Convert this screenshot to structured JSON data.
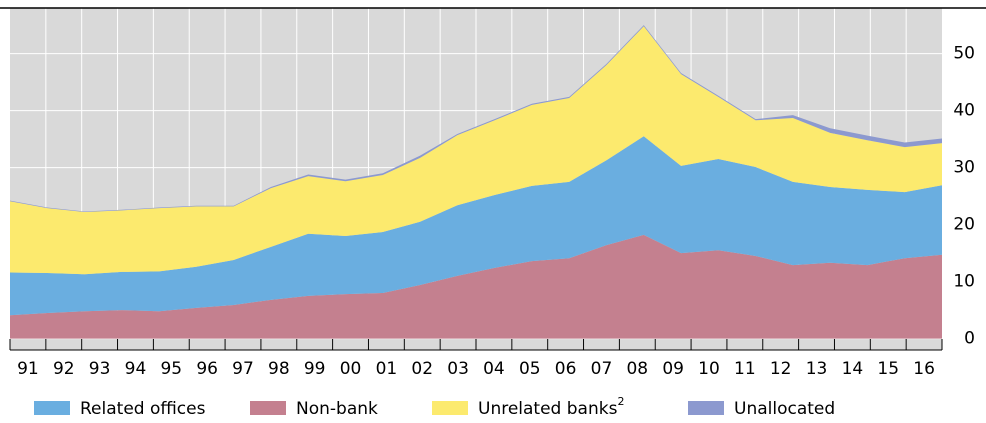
{
  "chart_data": {
    "type": "area",
    "stacked": true,
    "categories": [
      "91",
      "92",
      "93",
      "94",
      "95",
      "96",
      "97",
      "98",
      "99",
      "00",
      "01",
      "02",
      "03",
      "04",
      "05",
      "06",
      "07",
      "08",
      "09",
      "10",
      "11",
      "12",
      "13",
      "14",
      "15",
      "16"
    ],
    "series": [
      {
        "name": "Related offices",
        "color": "#6aaee0",
        "values": [
          7.5,
          7.0,
          6.5,
          6.7,
          7.0,
          7.2,
          7.9,
          9.3,
          10.9,
          10.2,
          10.7,
          11.1,
          12.4,
          12.8,
          13.2,
          13.4,
          14.9,
          17.3,
          15.3,
          16.0,
          15.6,
          14.6,
          13.3,
          13.2,
          11.6,
          12.2
        ]
      },
      {
        "name": "Non-bank",
        "color": "#c4808f",
        "values": [
          4.1,
          4.5,
          4.8,
          5.0,
          4.8,
          5.4,
          5.9,
          6.8,
          7.5,
          7.8,
          8.0,
          9.4,
          11.0,
          12.4,
          13.6,
          14.1,
          16.4,
          18.2,
          15.0,
          15.5,
          14.5,
          12.9,
          13.3,
          12.9,
          14.1,
          14.7
        ]
      },
      {
        "name": "Unrelated banks",
        "footnote": "2",
        "color": "#fcea6e",
        "values": [
          12.5,
          11.4,
          10.9,
          10.8,
          11.1,
          10.6,
          9.4,
          10.3,
          10.1,
          9.6,
          10.0,
          11.2,
          12.3,
          13.1,
          14.2,
          14.7,
          16.7,
          19.3,
          16.1,
          10.9,
          8.2,
          11.2,
          9.5,
          8.7,
          7.9,
          7.4
        ]
      },
      {
        "name": "Unallocated",
        "color": "#8c99cf",
        "values": [
          0.1,
          0.1,
          0.1,
          0.1,
          0.1,
          0.1,
          0.1,
          0.2,
          0.3,
          0.3,
          0.3,
          0.4,
          0.2,
          0.2,
          0.2,
          0.2,
          0.2,
          0.2,
          0.2,
          0.2,
          0.2,
          0.5,
          0.8,
          0.8,
          0.8,
          0.8
        ]
      }
    ],
    "ylim": [
      -2,
      58
    ],
    "yticks": [
      0,
      10,
      20,
      30,
      40,
      50
    ],
    "grid": true,
    "y_axis_side": "right",
    "legend": "bottom"
  }
}
